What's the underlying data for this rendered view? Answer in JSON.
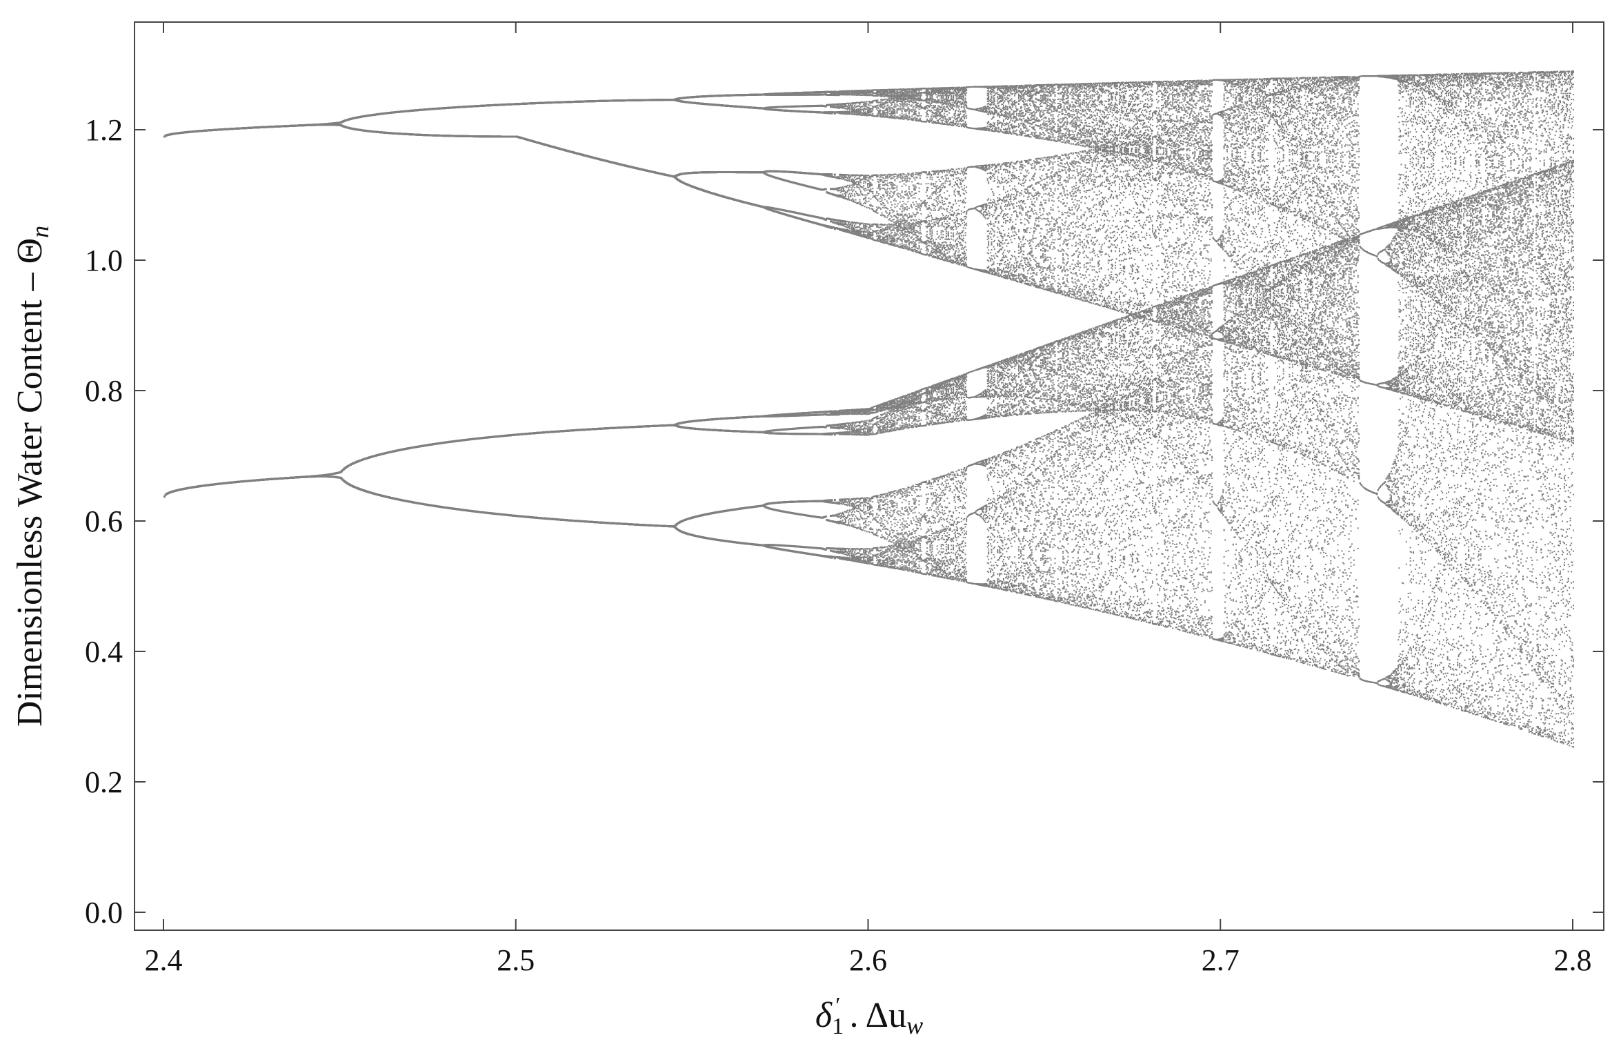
{
  "chart_data": {
    "type": "scatter",
    "subtype": "bifurcation-diagram",
    "title": "",
    "xlabel": {
      "parts": [
        "δ",
        "1",
        "′",
        " . ",
        "Δu",
        "w"
      ]
    },
    "ylabel": {
      "parts": [
        "Dimensionless Water Content – Θ",
        "n"
      ]
    },
    "xlim": [
      2.4,
      2.8
    ],
    "ylim": [
      0.0,
      1.3
    ],
    "xticks": [
      "2.4",
      "2.5",
      "2.6",
      "2.7",
      "2.8"
    ],
    "yticks": [
      "0.0",
      "0.2",
      "0.4",
      "0.6",
      "0.8",
      "1.0",
      "1.2"
    ],
    "grid": false,
    "legend": "none",
    "point_color": "#808080",
    "series": [
      {
        "description_values": [
          {
            "x": 2.4,
            "y": [
              0.639,
              1.191
            ]
          },
          {
            "x": 2.45,
            "y": [
              0.619,
              1.196
            ]
          },
          {
            "x": 2.5,
            "y": [
              0.523,
              0.695,
              1.141,
              1.227
            ]
          },
          {
            "x": 2.545,
            "y": [
              0.505,
              0.73,
              1.14,
              1.232
            ]
          },
          {
            "x": 2.57,
            "y": [
              0.48,
              0.78,
              1.12,
              1.24
            ]
          },
          {
            "x": 2.6,
            "y": [
              0.46,
              1.24
            ]
          },
          {
            "x": 2.7,
            "y": [
              0.355,
              1.27
            ]
          },
          {
            "x": 2.8,
            "y": [
              0.245,
              1.29
            ]
          }
        ]
      }
    ]
  }
}
